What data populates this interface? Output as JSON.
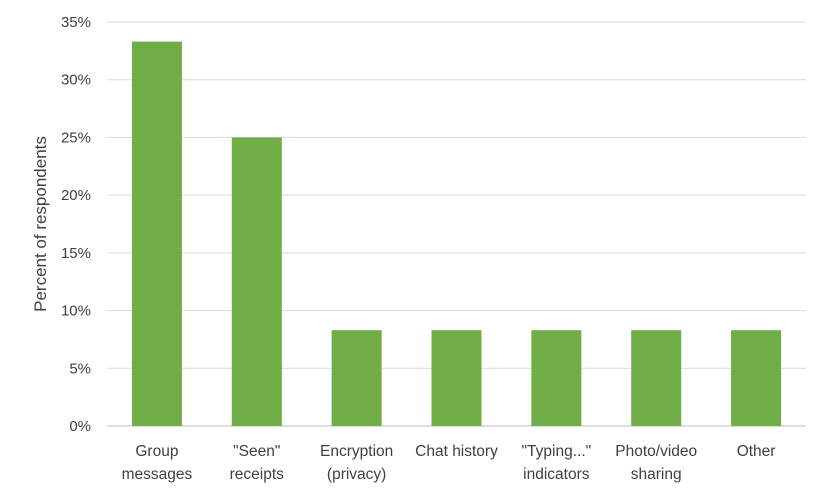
{
  "chart_data": {
    "type": "bar",
    "title": "",
    "xlabel": "",
    "ylabel": "Percent of respondents",
    "ylim": [
      0,
      35
    ],
    "yticks": [
      "0%",
      "5%",
      "10%",
      "15%",
      "20%",
      "25%",
      "30%",
      "35%"
    ],
    "grid": true,
    "legend": "none",
    "bar_color": "#70ad47",
    "categories": [
      [
        "Group",
        "messages"
      ],
      [
        "\"Seen\"",
        "receipts"
      ],
      [
        "Encryption",
        "(privacy)"
      ],
      [
        "Chat history"
      ],
      [
        "\"Typing...\"",
        "indicators"
      ],
      [
        "Photo/video",
        "sharing"
      ],
      [
        "Other"
      ]
    ],
    "values": [
      33.3,
      25.0,
      8.3,
      8.3,
      8.3,
      8.3,
      8.3
    ]
  }
}
